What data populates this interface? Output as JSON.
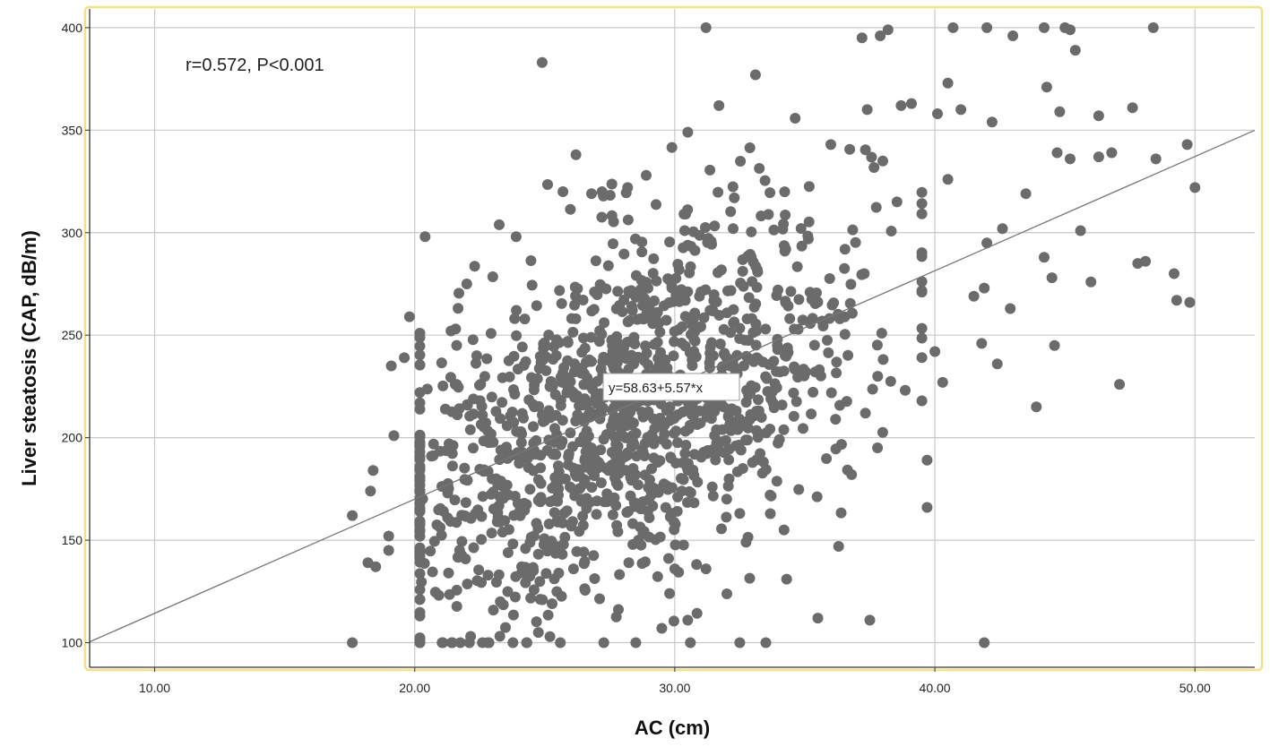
{
  "chart_data": {
    "type": "scatter",
    "xlabel": "AC (cm)",
    "ylabel": "Liver steatosis (CAP, dB/m)",
    "xlim": [
      7.5,
      52.3
    ],
    "ylim": [
      88,
      410
    ],
    "x_ticks": [
      "10.00",
      "20.00",
      "30.00",
      "40.00",
      "50.00"
    ],
    "y_ticks": [
      "100",
      "150",
      "200",
      "250",
      "300",
      "350",
      "400"
    ],
    "grid": true,
    "annotation": "r=0.572, P<0.001",
    "fit_label": "y=58.63+5.57*x",
    "fit": {
      "intercept": 58.63,
      "slope": 5.57
    },
    "point_count": 1400,
    "colors": {
      "points": "#6b6b6b",
      "grid": "#c8c8c8",
      "frame": "#f2e08a",
      "fit_line": "#777777"
    },
    "outlier_points": [
      [
        17.6,
        162
      ],
      [
        17.6,
        100
      ],
      [
        18.2,
        139
      ],
      [
        18.3,
        174
      ],
      [
        18.4,
        184
      ],
      [
        18.5,
        137
      ],
      [
        19.0,
        152
      ],
      [
        19.0,
        145
      ],
      [
        19.1,
        235
      ],
      [
        19.2,
        201
      ],
      [
        19.6,
        239
      ],
      [
        19.8,
        259
      ],
      [
        20.4,
        298
      ],
      [
        20.2,
        222
      ],
      [
        22.0,
        275
      ],
      [
        22.1,
        100
      ],
      [
        22.6,
        100
      ],
      [
        22.8,
        100
      ],
      [
        23.9,
        298
      ],
      [
        24.3,
        100
      ],
      [
        24.9,
        383
      ],
      [
        25.2,
        103
      ],
      [
        25.6,
        100
      ],
      [
        25.7,
        320
      ],
      [
        26.2,
        338
      ],
      [
        26.8,
        319
      ],
      [
        27.2,
        320
      ],
      [
        28.5,
        100
      ],
      [
        28.9,
        328
      ],
      [
        29.5,
        107
      ],
      [
        29.8,
        124
      ],
      [
        30.0,
        136
      ],
      [
        30.5,
        349
      ],
      [
        30.6,
        100
      ],
      [
        30.5,
        111
      ],
      [
        31.2,
        400
      ],
      [
        31.2,
        136
      ],
      [
        31.7,
        362
      ],
      [
        32.5,
        100
      ],
      [
        33.1,
        377
      ],
      [
        33.5,
        100
      ],
      [
        34.3,
        131
      ],
      [
        34.2,
        155
      ],
      [
        35.5,
        112
      ],
      [
        36.3,
        147
      ],
      [
        36.8,
        182
      ],
      [
        37.2,
        395
      ],
      [
        37.4,
        360
      ],
      [
        37.5,
        111
      ],
      [
        37.9,
        396
      ],
      [
        38.2,
        399
      ],
      [
        38.7,
        362
      ],
      [
        39.1,
        363
      ],
      [
        39.5,
        218
      ],
      [
        39.7,
        189
      ],
      [
        39.7,
        166
      ],
      [
        40.1,
        358
      ],
      [
        40.5,
        373
      ],
      [
        40.7,
        400
      ],
      [
        40.5,
        326
      ],
      [
        41.0,
        360
      ],
      [
        41.5,
        269
      ],
      [
        41.8,
        246
      ],
      [
        42.0,
        400
      ],
      [
        42.2,
        354
      ],
      [
        42.4,
        236
      ],
      [
        42.6,
        302
      ],
      [
        42.9,
        263
      ],
      [
        43.0,
        396
      ],
      [
        43.5,
        319
      ],
      [
        43.9,
        215
      ],
      [
        44.2,
        400
      ],
      [
        44.3,
        371
      ],
      [
        44.2,
        288
      ],
      [
        44.5,
        278
      ],
      [
        44.6,
        245
      ],
      [
        44.7,
        339
      ],
      [
        44.8,
        359
      ],
      [
        45.0,
        400
      ],
      [
        45.2,
        399
      ],
      [
        45.2,
        336
      ],
      [
        45.4,
        389
      ],
      [
        45.6,
        301
      ],
      [
        46.0,
        276
      ],
      [
        46.3,
        357
      ],
      [
        46.3,
        337
      ],
      [
        46.8,
        339
      ],
      [
        47.1,
        226
      ],
      [
        47.6,
        361
      ],
      [
        47.8,
        285
      ],
      [
        48.1,
        286
      ],
      [
        48.4,
        400
      ],
      [
        48.5,
        336
      ],
      [
        49.2,
        280
      ],
      [
        49.3,
        267
      ],
      [
        49.7,
        343
      ],
      [
        49.8,
        266
      ],
      [
        50.0,
        322
      ],
      [
        41.9,
        100
      ],
      [
        42.0,
        295
      ],
      [
        41.9,
        273
      ],
      [
        40.0,
        242
      ],
      [
        40.3,
        227
      ],
      [
        38.0,
        335
      ],
      [
        36.0,
        343
      ]
    ]
  }
}
